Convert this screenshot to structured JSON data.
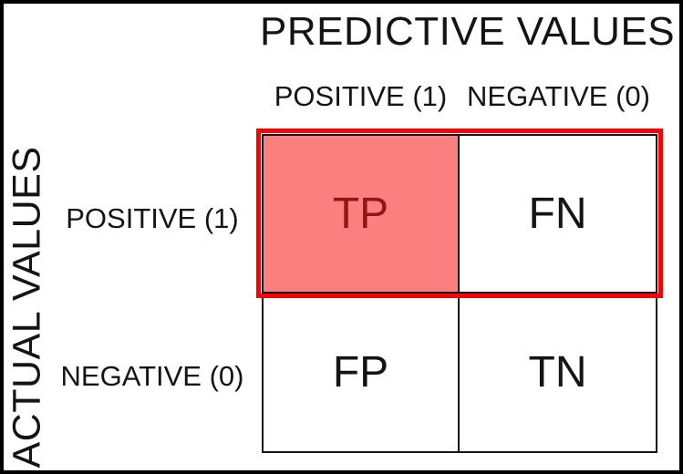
{
  "figure": {
    "predicted_axis_title": "PREDICTIVE VALUES",
    "actual_axis_title": "ACTUAL VALUES"
  },
  "matrix": {
    "column_headers": [
      "POSITIVE (1)",
      "NEGATIVE (0)"
    ],
    "row_headers": [
      "POSITIVE (1)",
      "NEGATIVE (0)"
    ],
    "cells": [
      {
        "id": "true-positive",
        "label": "TP",
        "highlighted": true
      },
      {
        "id": "false-negative",
        "label": "FN",
        "highlighted": false
      },
      {
        "id": "false-positive",
        "label": "FP",
        "highlighted": false
      },
      {
        "id": "true-negative",
        "label": "TN",
        "highlighted": false
      }
    ]
  },
  "colors": {
    "highlight_fill": "#fc7f7f",
    "highlight_text": "#931414",
    "highlight_outline": "#fb0000",
    "line": "#141414"
  }
}
